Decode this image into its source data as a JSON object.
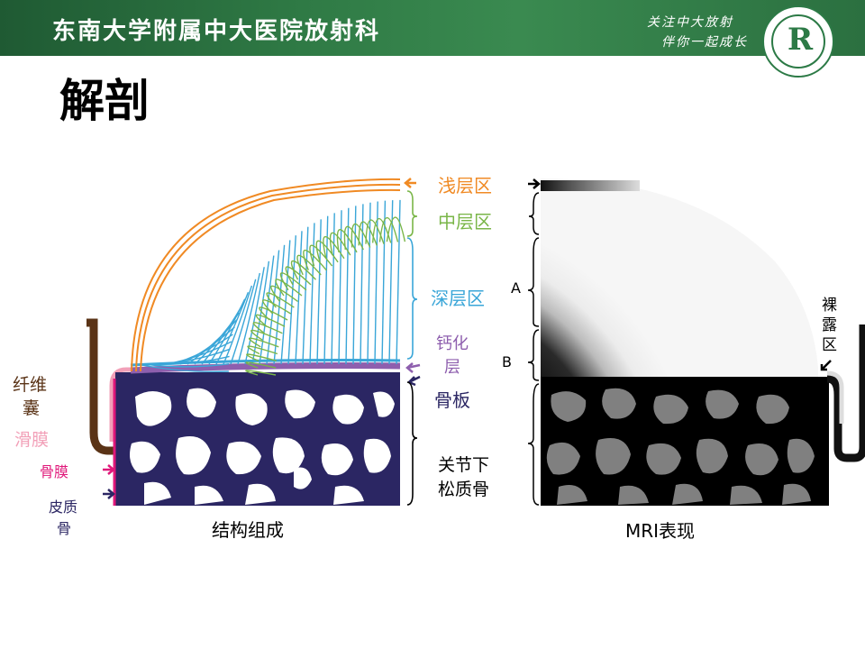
{
  "header": {
    "institution": "东南大学附属中大医院放射科",
    "slogan_line1": "关注中大放射",
    "slogan_line2": "伴你一起成长",
    "logo_letter": "R"
  },
  "slide": {
    "title": "解剖"
  },
  "diagram": {
    "caption_left": "结构组成",
    "caption_right": "MRI表现",
    "zone_labels": {
      "superficial": "浅层区",
      "middle": "中层区",
      "deep": "深层区",
      "calcified_line1": "钙化",
      "calcified_line2": "层",
      "subchondral_plate": "骨板",
      "cancellous_line1": "关节下",
      "cancellous_line2": "松质骨"
    },
    "side_labels": {
      "fibrous_capsule_line1": "纤维",
      "fibrous_capsule_line2": "囊",
      "synovium": "滑膜",
      "periosteum": "骨膜",
      "cortical_line1": "皮质",
      "cortical_line2": "骨"
    },
    "mri_labels": {
      "bracket_a": "A",
      "bracket_b": "B",
      "bare_area_line1": "裸",
      "bare_area_line2": "露",
      "bare_area_line3": "区"
    },
    "colors": {
      "superficial": "#f08a24",
      "middle": "#7ab648",
      "deep": "#3aa6d8",
      "calcified": "#8e5fae",
      "bone": "#2b2663",
      "capsule": "#5a3316",
      "synovium": "#f2a0b8",
      "periosteum": "#e0187a"
    }
  }
}
